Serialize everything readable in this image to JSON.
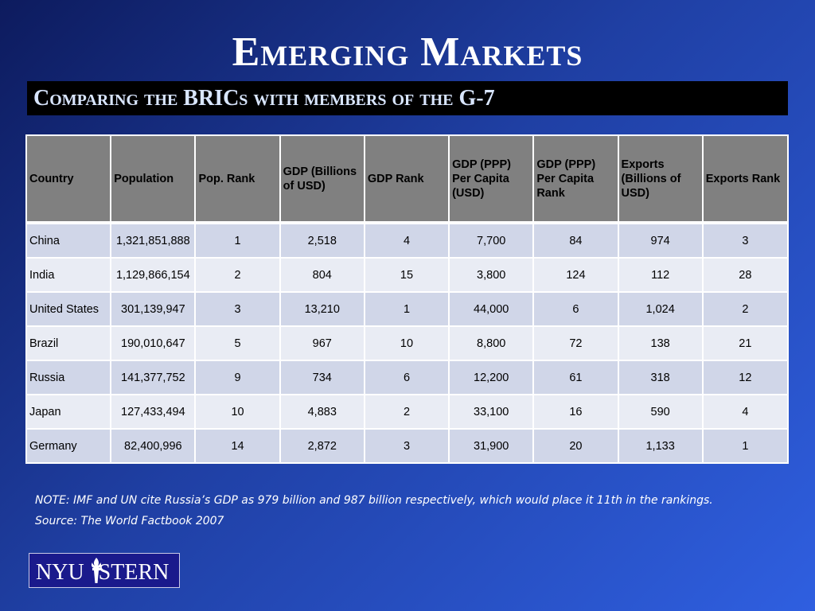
{
  "title": "Emerging Markets",
  "subtitle": "Comparing the BRICs with members of the G-7",
  "table": {
    "headers": [
      "Country",
      "Population",
      "Pop. Rank",
      "GDP (Billions of USD)",
      "GDP Rank",
      "GDP (PPP) Per Capita (USD)",
      "GDP (PPP) Per Capita Rank",
      "Exports (Billions of USD)",
      "Exports Rank"
    ],
    "rows": [
      [
        "China",
        "1,321,851,888",
        "1",
        "2,518",
        "4",
        "7,700",
        "84",
        "974",
        "3"
      ],
      [
        "India",
        "1,129,866,154",
        "2",
        "804",
        "15",
        "3,800",
        "124",
        "112",
        "28"
      ],
      [
        "United States",
        "301,139,947",
        "3",
        "13,210",
        "1",
        "44,000",
        "6",
        "1,024",
        "2"
      ],
      [
        "Brazil",
        "190,010,647",
        "5",
        "967",
        "10",
        "8,800",
        "72",
        "138",
        "21"
      ],
      [
        "Russia",
        "141,377,752",
        "9",
        "734",
        "6",
        "12,200",
        "61",
        "318",
        "12"
      ],
      [
        "Japan",
        "127,433,494",
        "10",
        "4,883",
        "2",
        "33,100",
        "16",
        "590",
        "4"
      ],
      [
        "Germany",
        "82,400,996",
        "14",
        "2,872",
        "3",
        "31,900",
        "20",
        "1,133",
        "1"
      ]
    ]
  },
  "note": "NOTE: IMF and UN cite Russia’s GDP as 979 billion and 987 billion respectively, which would place it 11th in the rankings.",
  "source": "Source: The World Factbook 2007",
  "logo": {
    "text_left": "NYU",
    "text_right": "STERN",
    "icon": "torch-icon"
  },
  "colors": {
    "header_bg": "#808080",
    "row_odd": "#d0d6e8",
    "row_even": "#e9ecf4",
    "subtitle_bar": "#000000",
    "logo_bg": "#1a1a8c"
  }
}
